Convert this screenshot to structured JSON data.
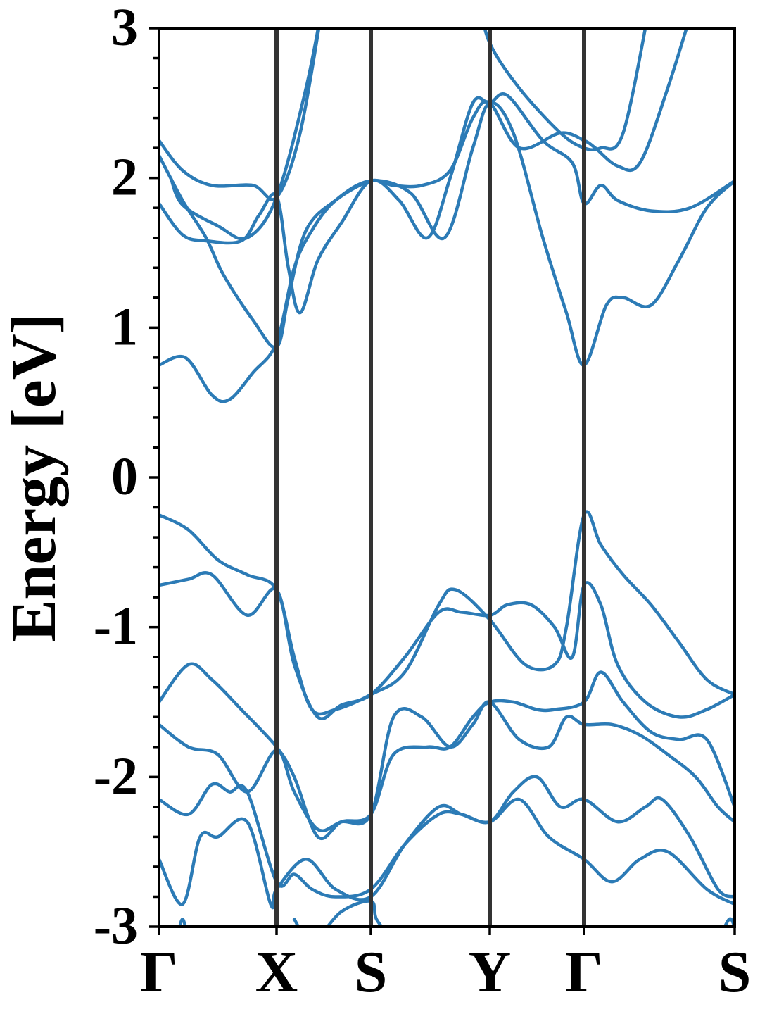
{
  "chart_data": {
    "type": "line",
    "title": "",
    "xlabel": "",
    "ylabel": "Energy [eV]",
    "ylim": [
      -3,
      3
    ],
    "xlim": [
      0,
      10
    ],
    "yticks": [
      -3,
      -2,
      -1,
      0,
      1,
      2,
      3
    ],
    "yticklabels": [
      "-3",
      "-2",
      "-1",
      "0",
      "1",
      "2",
      "3"
    ],
    "ytick_minor_step": 0.2,
    "grid": false,
    "line_color": "#2c7bb6",
    "vline_color": "#333333",
    "high_symmetry_points": [
      {
        "label": "Γ",
        "x": 0
      },
      {
        "label": "X",
        "x": 2
      },
      {
        "label": "S",
        "x": 3.6
      },
      {
        "label": "Y",
        "x": 5.7
      },
      {
        "label": "Γ",
        "x": 7.3
      },
      {
        "label": "S",
        "x": 10
      }
    ],
    "series": [
      {
        "values": [
          [
            0,
            0.75
          ],
          [
            0.45,
            0.8
          ],
          [
            0.9,
            0.55
          ],
          [
            1.2,
            0.52
          ],
          [
            1.6,
            0.7
          ],
          [
            2.0,
            0.9
          ],
          [
            2.3,
            1.4
          ],
          [
            2.6,
            1.65
          ],
          [
            3.0,
            1.85
          ],
          [
            3.6,
            1.98
          ],
          [
            4.3,
            1.9
          ],
          [
            4.9,
            1.6
          ],
          [
            5.4,
            2.2
          ],
          [
            5.7,
            2.5
          ],
          [
            6.1,
            2.3
          ],
          [
            6.6,
            1.6
          ],
          [
            7.0,
            1.1
          ],
          [
            7.3,
            0.75
          ],
          [
            7.7,
            1.15
          ],
          [
            8.0,
            1.2
          ],
          [
            8.5,
            1.15
          ],
          [
            9.0,
            1.45
          ],
          [
            9.5,
            1.8
          ],
          [
            10,
            1.98
          ]
        ]
      },
      {
        "values": [
          [
            0,
            1.83
          ],
          [
            0.4,
            1.62
          ],
          [
            0.8,
            1.58
          ],
          [
            1.4,
            1.58
          ],
          [
            1.7,
            1.75
          ],
          [
            2.0,
            1.88
          ],
          [
            2.2,
            1.4
          ],
          [
            2.4,
            1.1
          ],
          [
            2.7,
            1.45
          ],
          [
            3.1,
            1.7
          ],
          [
            3.6,
            1.98
          ],
          [
            4.1,
            1.85
          ],
          [
            4.6,
            1.6
          ],
          [
            5.0,
            2.0
          ],
          [
            5.4,
            2.5
          ],
          [
            5.7,
            2.5
          ],
          [
            6.0,
            2.55
          ],
          [
            6.6,
            2.25
          ],
          [
            7.1,
            2.1
          ],
          [
            7.3,
            1.83
          ],
          [
            7.6,
            1.95
          ],
          [
            7.9,
            1.85
          ],
          [
            8.5,
            1.78
          ],
          [
            9.2,
            1.8
          ],
          [
            10,
            1.98
          ]
        ]
      },
      {
        "values": [
          [
            0,
            2.15
          ],
          [
            0.4,
            1.85
          ],
          [
            0.8,
            1.6
          ],
          [
            1.1,
            1.35
          ],
          [
            1.6,
            1.05
          ],
          [
            2.0,
            0.87
          ],
          [
            2.2,
            1.2
          ],
          [
            2.5,
            1.65
          ],
          [
            3.0,
            1.85
          ],
          [
            3.6,
            1.98
          ],
          [
            4.0,
            1.95
          ],
          [
            4.5,
            1.95
          ],
          [
            5.0,
            2.05
          ],
          [
            5.4,
            2.4
          ],
          [
            5.7,
            2.5
          ],
          [
            6.2,
            2.2
          ],
          [
            6.9,
            2.3
          ],
          [
            7.3,
            2.25
          ],
          [
            7.5,
            2.2
          ],
          [
            7.9,
            2.08
          ],
          [
            8.3,
            2.1
          ],
          [
            8.8,
            2.6
          ],
          [
            9.3,
            3.2
          ]
        ]
      },
      {
        "values": [
          [
            0,
            2.25
          ],
          [
            0.4,
            2.05
          ],
          [
            0.9,
            1.95
          ],
          [
            1.6,
            1.95
          ],
          [
            2.0,
            1.87
          ],
          [
            2.4,
            2.3
          ],
          [
            2.8,
            3.2
          ]
        ]
      },
      {
        "values": [
          [
            0.2,
            2.0
          ],
          [
            0.4,
            1.82
          ],
          [
            1.0,
            1.68
          ],
          [
            1.5,
            1.6
          ],
          [
            2.0,
            1.87
          ],
          [
            2.5,
            2.6
          ],
          [
            2.8,
            3.2
          ]
        ]
      },
      {
        "values": [
          [
            5.5,
            3.2
          ],
          [
            5.7,
            2.9
          ],
          [
            6.2,
            2.6
          ],
          [
            6.9,
            2.3
          ],
          [
            7.3,
            2.2
          ],
          [
            7.6,
            2.2
          ],
          [
            8.0,
            2.3
          ],
          [
            8.5,
            3.2
          ]
        ]
      },
      {
        "values": [
          [
            5.5,
            3.2
          ],
          [
            5.7,
            3.0
          ],
          [
            6.3,
            3.1
          ]
        ]
      },
      {
        "values": [
          [
            0,
            -0.25
          ],
          [
            0.5,
            -0.35
          ],
          [
            1.0,
            -0.55
          ],
          [
            1.5,
            -0.65
          ],
          [
            2.0,
            -0.75
          ],
          [
            2.3,
            -1.2
          ],
          [
            2.6,
            -1.55
          ],
          [
            3.0,
            -1.55
          ],
          [
            3.6,
            -1.45
          ],
          [
            4.2,
            -1.3
          ],
          [
            4.8,
            -0.85
          ],
          [
            5.1,
            -0.75
          ],
          [
            5.7,
            -0.95
          ],
          [
            6.3,
            -1.25
          ],
          [
            6.8,
            -1.25
          ],
          [
            7.0,
            -1.0
          ],
          [
            7.3,
            -0.25
          ],
          [
            7.6,
            -0.45
          ],
          [
            8.0,
            -0.65
          ],
          [
            8.5,
            -0.85
          ],
          [
            9.0,
            -1.1
          ],
          [
            9.5,
            -1.35
          ],
          [
            10,
            -1.45
          ]
        ]
      },
      {
        "values": [
          [
            0,
            -0.72
          ],
          [
            0.5,
            -0.68
          ],
          [
            0.9,
            -0.65
          ],
          [
            1.5,
            -0.92
          ],
          [
            2.0,
            -0.75
          ],
          [
            2.3,
            -1.25
          ],
          [
            2.7,
            -1.6
          ],
          [
            3.1,
            -1.52
          ],
          [
            3.6,
            -1.45
          ],
          [
            4.2,
            -1.2
          ],
          [
            4.8,
            -0.9
          ],
          [
            5.2,
            -0.9
          ],
          [
            5.7,
            -0.92
          ],
          [
            6.0,
            -0.85
          ],
          [
            6.4,
            -0.85
          ],
          [
            6.8,
            -1.0
          ],
          [
            7.1,
            -1.2
          ],
          [
            7.3,
            -0.72
          ],
          [
            7.6,
            -0.85
          ],
          [
            7.9,
            -1.25
          ],
          [
            8.4,
            -1.5
          ],
          [
            9.0,
            -1.6
          ],
          [
            9.5,
            -1.55
          ],
          [
            10,
            -1.45
          ]
        ]
      },
      {
        "values": [
          [
            0,
            -1.5
          ],
          [
            0.5,
            -1.25
          ],
          [
            0.9,
            -1.35
          ],
          [
            1.4,
            -1.55
          ],
          [
            2.0,
            -1.8
          ],
          [
            2.3,
            -2.0
          ],
          [
            2.7,
            -2.4
          ],
          [
            3.1,
            -2.3
          ],
          [
            3.6,
            -2.25
          ],
          [
            4.0,
            -1.85
          ],
          [
            4.6,
            -1.8
          ],
          [
            5.0,
            -1.8
          ],
          [
            5.4,
            -1.6
          ],
          [
            5.7,
            -1.5
          ],
          [
            6.1,
            -1.5
          ],
          [
            6.5,
            -1.55
          ],
          [
            6.8,
            -1.55
          ],
          [
            7.3,
            -1.5
          ],
          [
            7.6,
            -1.3
          ],
          [
            8.0,
            -1.5
          ],
          [
            8.5,
            -1.7
          ],
          [
            9.0,
            -1.75
          ],
          [
            9.5,
            -1.75
          ],
          [
            10,
            -2.2
          ]
        ]
      },
      {
        "values": [
          [
            0,
            -1.65
          ],
          [
            0.5,
            -1.8
          ],
          [
            1.0,
            -1.85
          ],
          [
            1.5,
            -2.1
          ],
          [
            2.0,
            -1.82
          ],
          [
            2.3,
            -2.1
          ],
          [
            2.7,
            -2.35
          ],
          [
            3.1,
            -2.3
          ],
          [
            3.6,
            -2.25
          ],
          [
            4.0,
            -1.6
          ],
          [
            4.5,
            -1.6
          ],
          [
            5.0,
            -1.8
          ],
          [
            5.4,
            -1.65
          ],
          [
            5.7,
            -1.5
          ],
          [
            6.2,
            -1.75
          ],
          [
            6.7,
            -1.8
          ],
          [
            7.0,
            -1.6
          ],
          [
            7.3,
            -1.65
          ],
          [
            7.8,
            -1.65
          ],
          [
            8.3,
            -1.72
          ],
          [
            8.8,
            -1.85
          ],
          [
            9.3,
            -2.0
          ],
          [
            9.7,
            -2.2
          ],
          [
            10,
            -2.3
          ]
        ]
      },
      {
        "values": [
          [
            0,
            -2.15
          ],
          [
            0.5,
            -2.25
          ],
          [
            0.9,
            -2.05
          ],
          [
            1.2,
            -2.1
          ],
          [
            1.5,
            -2.1
          ],
          [
            2.0,
            -2.7
          ],
          [
            2.3,
            -2.65
          ],
          [
            2.6,
            -2.75
          ],
          [
            3.0,
            -2.8
          ],
          [
            3.6,
            -2.75
          ],
          [
            4.2,
            -2.45
          ],
          [
            4.8,
            -2.25
          ],
          [
            5.2,
            -2.25
          ],
          [
            5.7,
            -2.3
          ],
          [
            6.1,
            -2.1
          ],
          [
            6.5,
            -2.0
          ],
          [
            6.9,
            -2.2
          ],
          [
            7.3,
            -2.15
          ],
          [
            7.9,
            -2.3
          ],
          [
            8.4,
            -2.2
          ],
          [
            8.7,
            -2.15
          ],
          [
            9.2,
            -2.4
          ],
          [
            9.7,
            -2.75
          ],
          [
            10,
            -2.8
          ]
        ]
      },
      {
        "values": [
          [
            0,
            -2.55
          ],
          [
            0.4,
            -2.85
          ],
          [
            0.7,
            -2.4
          ],
          [
            1.0,
            -2.4
          ],
          [
            1.5,
            -2.3
          ],
          [
            1.9,
            -2.85
          ],
          [
            2.0,
            -2.75
          ],
          [
            2.5,
            -2.55
          ],
          [
            3.0,
            -2.75
          ],
          [
            3.6,
            -2.8
          ],
          [
            4.2,
            -2.45
          ],
          [
            4.8,
            -2.2
          ],
          [
            5.2,
            -2.25
          ],
          [
            5.7,
            -2.3
          ],
          [
            6.2,
            -2.15
          ],
          [
            6.7,
            -2.4
          ],
          [
            7.3,
            -2.55
          ],
          [
            7.8,
            -2.7
          ],
          [
            8.3,
            -2.55
          ],
          [
            8.8,
            -2.5
          ],
          [
            9.5,
            -2.75
          ],
          [
            10,
            -2.85
          ]
        ]
      },
      {
        "values": [
          [
            2.3,
            -2.95
          ],
          [
            2.6,
            -3.1
          ],
          [
            3.1,
            -2.9
          ],
          [
            3.6,
            -2.83
          ],
          [
            3.7,
            -2.95
          ],
          [
            4.0,
            -3.1
          ]
        ]
      },
      {
        "values": [
          [
            0.3,
            -3.1
          ],
          [
            0.4,
            -2.95
          ],
          [
            0.5,
            -3.1
          ]
        ]
      },
      {
        "values": [
          [
            9.7,
            -3.1
          ],
          [
            9.9,
            -2.95
          ],
          [
            10,
            -3.0
          ]
        ]
      }
    ]
  }
}
